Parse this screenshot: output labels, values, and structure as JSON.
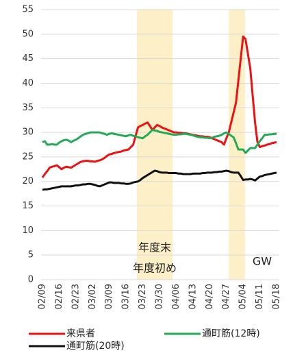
{
  "chart_data": {
    "type": "line",
    "categories": [
      "02/09",
      null,
      null,
      null,
      null,
      null,
      null,
      "02/16",
      null,
      null,
      null,
      null,
      null,
      null,
      "02/23",
      null,
      null,
      null,
      null,
      null,
      null,
      "03/02",
      null,
      null,
      null,
      null,
      null,
      null,
      "03/09",
      null,
      null,
      null,
      null,
      null,
      null,
      "03/16",
      null,
      null,
      null,
      null,
      null,
      null,
      "03/23",
      null,
      null,
      null,
      null,
      null,
      null,
      "03/30",
      null,
      null,
      null,
      null,
      null,
      null,
      "04/06",
      null,
      null,
      null,
      null,
      null,
      null,
      "04/13",
      null,
      null,
      null,
      null,
      null,
      null,
      "04/20",
      null,
      null,
      null,
      null,
      null,
      null,
      "04/27",
      null,
      null,
      null,
      null,
      null,
      null,
      "05/04",
      null,
      null,
      null,
      null,
      null,
      null,
      "05/11",
      null,
      null,
      null,
      null,
      null,
      null,
      "05/18"
    ],
    "series": [
      {
        "name": "来県者",
        "color": "#ee1111",
        "values": [
          20.8,
          21.5,
          22.1,
          22.8,
          23.0,
          23.1,
          23.3,
          22.9,
          22.5,
          22.8,
          23.0,
          22.9,
          22.8,
          23.1,
          23.4,
          23.7,
          24.0,
          24.1,
          24.2,
          24.2,
          24.1,
          24.1,
          24.0,
          24.2,
          24.3,
          24.5,
          24.8,
          25.2,
          25.5,
          25.6,
          25.8,
          25.9,
          26.0,
          26.1,
          26.3,
          26.4,
          26.5,
          27.0,
          27.5,
          29.3,
          31.0,
          31.3,
          31.5,
          31.8,
          32.0,
          31.3,
          30.5,
          31.0,
          31.5,
          31.3,
          31.0,
          30.8,
          30.6,
          30.4,
          30.2,
          30.0,
          30.0,
          29.9,
          29.9,
          29.8,
          29.8,
          29.7,
          29.6,
          29.5,
          29.4,
          29.3,
          29.2,
          29.2,
          29.1,
          29.1,
          29.0,
          28.8,
          28.6,
          28.4,
          28.2,
          28.0,
          27.5,
          28.8,
          30.0,
          32.0,
          34.0,
          36.0,
          40.5,
          45.0,
          49.5,
          49.0,
          46.0,
          43.0,
          37.5,
          32.0,
          28.0,
          27.0,
          27.2,
          27.3,
          27.5,
          27.6,
          27.8,
          27.9,
          28.0
        ]
      },
      {
        "name": "通町筋(12時)",
        "color": "#22aa55",
        "values": [
          28.0,
          28.2,
          27.5,
          27.5,
          27.6,
          27.5,
          27.5,
          27.9,
          28.2,
          28.4,
          28.5,
          28.3,
          28.0,
          28.3,
          28.5,
          28.8,
          29.2,
          29.5,
          29.7,
          29.8,
          30.0,
          30.0,
          30.0,
          30.0,
          30.0,
          29.8,
          29.7,
          29.5,
          29.7,
          29.8,
          29.7,
          29.6,
          29.5,
          29.4,
          29.3,
          29.2,
          29.4,
          29.5,
          29.3,
          29.2,
          29.0,
          28.9,
          28.8,
          29.2,
          29.5,
          30.0,
          30.5,
          30.4,
          30.3,
          30.1,
          30.0,
          29.9,
          29.8,
          29.7,
          29.6,
          29.5,
          29.5,
          29.6,
          29.6,
          29.7,
          29.7,
          29.6,
          29.5,
          29.4,
          29.2,
          29.1,
          29.0,
          29.0,
          28.9,
          28.9,
          28.8,
          28.9,
          29.1,
          29.2,
          29.3,
          29.5,
          29.8,
          30.0,
          29.7,
          29.3,
          29.0,
          27.8,
          26.5,
          26.5,
          26.5,
          25.8,
          26.3,
          26.8,
          26.8,
          26.8,
          27.5,
          28.2,
          28.8,
          29.5,
          29.5,
          29.6,
          29.6,
          29.7,
          29.7
        ]
      },
      {
        "name": "通町筋(20時)",
        "color": "#111111",
        "values": [
          18.3,
          18.4,
          18.4,
          18.5,
          18.6,
          18.7,
          18.8,
          18.9,
          19.0,
          19.0,
          19.0,
          19.0,
          19.0,
          19.1,
          19.2,
          19.2,
          19.3,
          19.4,
          19.4,
          19.5,
          19.5,
          19.4,
          19.3,
          19.1,
          19.0,
          19.2,
          19.4,
          19.6,
          19.8,
          19.8,
          19.7,
          19.7,
          19.7,
          19.6,
          19.6,
          19.5,
          19.5,
          19.6,
          19.8,
          19.9,
          20.0,
          20.3,
          20.7,
          21.0,
          21.3,
          21.6,
          21.9,
          22.2,
          22.1,
          21.9,
          21.8,
          21.8,
          21.8,
          21.7,
          21.7,
          21.7,
          21.7,
          21.6,
          21.6,
          21.5,
          21.5,
          21.5,
          21.5,
          21.6,
          21.6,
          21.6,
          21.6,
          21.7,
          21.7,
          21.8,
          21.8,
          21.8,
          21.9,
          21.9,
          22.0,
          22.0,
          22.1,
          22.2,
          22.1,
          21.9,
          21.8,
          21.8,
          21.8,
          21.1,
          20.3,
          20.4,
          20.4,
          20.5,
          20.4,
          20.2,
          20.6,
          21.0,
          21.1,
          21.3,
          21.4,
          21.5,
          21.6,
          21.7,
          21.8
        ]
      }
    ],
    "ylim": [
      0,
      55
    ],
    "yticks": [
      0,
      5,
      10,
      15,
      20,
      25,
      30,
      35,
      40,
      45,
      50,
      55
    ],
    "grid": true,
    "highlights": [
      {
        "start": 39.5,
        "end": 54.5,
        "color": "#fdf0c8",
        "labels": [
          "年度末",
          "年度初め"
        ]
      },
      {
        "start": 78,
        "end": 84.8,
        "color": "#fdf0c8",
        "labels": [
          "GW"
        ]
      }
    ],
    "legend": "bottom"
  }
}
